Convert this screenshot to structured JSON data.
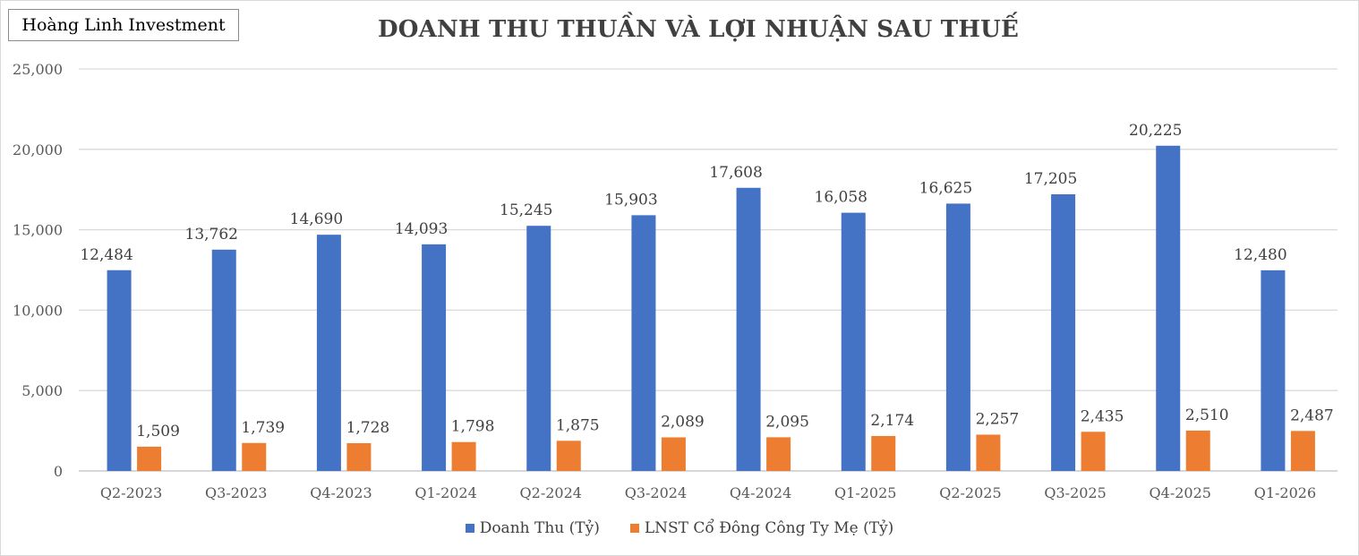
{
  "brand": "Hoàng Linh Investment",
  "chart_data": {
    "type": "bar",
    "title": "DOANH THU THUẦN VÀ LỢI NHUẬN SAU THUẾ",
    "xlabel": "",
    "ylabel": "",
    "categories": [
      "Q2-2023",
      "Q3-2023",
      "Q4-2023",
      "Q1-2024",
      "Q2-2024",
      "Q3-2024",
      "Q4-2024",
      "Q1-2025",
      "Q2-2025",
      "Q3-2025",
      "Q4-2025",
      "Q1-2026"
    ],
    "series": [
      {
        "name": "Doanh Thu (Tỷ)",
        "color": "#4472c4",
        "values": [
          12484,
          13762,
          14690,
          14093,
          15245,
          15903,
          17608,
          16058,
          16625,
          17205,
          20225,
          12480
        ],
        "labels": [
          "12,484",
          "13,762",
          "14,690",
          "14,093",
          "15,245",
          "15,903",
          "17,608",
          "16,058",
          "16,625",
          "17,205",
          "20,225",
          "12,480"
        ]
      },
      {
        "name": "LNST Cổ Đông Công Ty Mẹ (Tỷ)",
        "color": "#ed7d31",
        "values": [
          1509,
          1739,
          1728,
          1798,
          1875,
          2089,
          2095,
          2174,
          2257,
          2435,
          2510,
          2487
        ],
        "labels": [
          "1,509",
          "1,739",
          "1,728",
          "1,798",
          "1,875",
          "2,089",
          "2,095",
          "2,174",
          "2,257",
          "2,435",
          "2,510",
          "2,487"
        ]
      }
    ],
    "ylim": [
      0,
      25000
    ],
    "y_ticks": [
      0,
      5000,
      10000,
      15000,
      20000,
      25000
    ],
    "y_tick_labels": [
      "0",
      "5,000",
      "10,000",
      "15,000",
      "20,000",
      "25,000"
    ],
    "grid": true,
    "legend": "bottom"
  }
}
